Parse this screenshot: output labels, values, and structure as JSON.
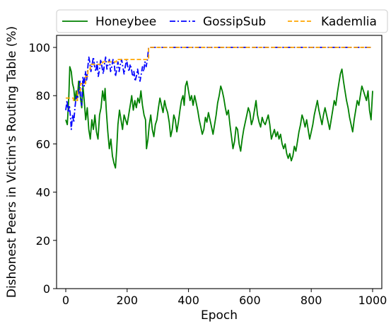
{
  "chart_data": {
    "type": "line",
    "xlabel": "Epoch",
    "ylabel": "Dishonest Peers in Victim's Routing Table (%)",
    "xlim": [
      -30,
      1030
    ],
    "ylim": [
      0,
      105
    ],
    "x_ticks": [
      0,
      200,
      400,
      600,
      800,
      1000
    ],
    "y_ticks": [
      0,
      20,
      40,
      60,
      80,
      100
    ],
    "grid": false,
    "legend_position": "top (above plot)",
    "series": [
      {
        "name": "Honeybee",
        "color": "#008000",
        "linestyle": "solid",
        "points": [
          [
            0,
            70
          ],
          [
            5,
            68
          ],
          [
            10,
            80
          ],
          [
            13,
            92
          ],
          [
            18,
            90
          ],
          [
            22,
            85
          ],
          [
            26,
            83
          ],
          [
            30,
            78
          ],
          [
            34,
            82
          ],
          [
            38,
            79
          ],
          [
            42,
            86
          ],
          [
            47,
            80
          ],
          [
            52,
            75
          ],
          [
            56,
            84
          ],
          [
            60,
            78
          ],
          [
            65,
            70
          ],
          [
            70,
            75
          ],
          [
            75,
            66
          ],
          [
            80,
            62
          ],
          [
            85,
            70
          ],
          [
            90,
            66
          ],
          [
            95,
            72
          ],
          [
            100,
            65
          ],
          [
            105,
            62
          ],
          [
            110,
            72
          ],
          [
            115,
            75
          ],
          [
            120,
            82
          ],
          [
            125,
            78
          ],
          [
            128,
            83
          ],
          [
            132,
            74
          ],
          [
            137,
            65
          ],
          [
            142,
            58
          ],
          [
            147,
            62
          ],
          [
            152,
            55
          ],
          [
            157,
            52
          ],
          [
            162,
            50
          ],
          [
            166,
            58
          ],
          [
            170,
            68
          ],
          [
            175,
            74
          ],
          [
            180,
            70
          ],
          [
            185,
            66
          ],
          [
            190,
            72
          ],
          [
            195,
            70
          ],
          [
            200,
            68
          ],
          [
            205,
            72
          ],
          [
            210,
            76
          ],
          [
            215,
            80
          ],
          [
            220,
            74
          ],
          [
            225,
            78
          ],
          [
            230,
            75
          ],
          [
            235,
            79
          ],
          [
            240,
            77
          ],
          [
            245,
            82
          ],
          [
            250,
            76
          ],
          [
            255,
            72
          ],
          [
            260,
            70
          ],
          [
            263,
            58
          ],
          [
            268,
            62
          ],
          [
            272,
            68
          ],
          [
            277,
            72
          ],
          [
            282,
            66
          ],
          [
            287,
            63
          ],
          [
            292,
            68
          ],
          [
            297,
            70
          ],
          [
            302,
            75
          ],
          [
            307,
            79
          ],
          [
            312,
            76
          ],
          [
            317,
            73
          ],
          [
            322,
            78
          ],
          [
            327,
            75
          ],
          [
            332,
            73
          ],
          [
            337,
            69
          ],
          [
            342,
            63
          ],
          [
            347,
            66
          ],
          [
            352,
            72
          ],
          [
            357,
            70
          ],
          [
            362,
            65
          ],
          [
            367,
            69
          ],
          [
            372,
            74
          ],
          [
            377,
            78
          ],
          [
            382,
            80
          ],
          [
            386,
            76
          ],
          [
            390,
            84
          ],
          [
            395,
            86
          ],
          [
            400,
            82
          ],
          [
            405,
            78
          ],
          [
            410,
            80
          ],
          [
            415,
            76
          ],
          [
            420,
            80
          ],
          [
            425,
            77
          ],
          [
            430,
            74
          ],
          [
            435,
            70
          ],
          [
            440,
            67
          ],
          [
            445,
            64
          ],
          [
            450,
            66
          ],
          [
            455,
            71
          ],
          [
            460,
            69
          ],
          [
            465,
            73
          ],
          [
            470,
            70
          ],
          [
            475,
            67
          ],
          [
            480,
            64
          ],
          [
            485,
            68
          ],
          [
            490,
            72
          ],
          [
            495,
            77
          ],
          [
            500,
            80
          ],
          [
            505,
            84
          ],
          [
            510,
            82
          ],
          [
            515,
            79
          ],
          [
            520,
            75
          ],
          [
            525,
            72
          ],
          [
            530,
            74
          ],
          [
            535,
            68
          ],
          [
            540,
            63
          ],
          [
            545,
            58
          ],
          [
            550,
            61
          ],
          [
            555,
            67
          ],
          [
            560,
            66
          ],
          [
            565,
            60
          ],
          [
            570,
            57
          ],
          [
            575,
            62
          ],
          [
            580,
            66
          ],
          [
            585,
            69
          ],
          [
            590,
            72
          ],
          [
            595,
            75
          ],
          [
            600,
            73
          ],
          [
            605,
            68
          ],
          [
            610,
            70
          ],
          [
            615,
            74
          ],
          [
            620,
            78
          ],
          [
            625,
            72
          ],
          [
            630,
            69
          ],
          [
            635,
            67
          ],
          [
            640,
            71
          ],
          [
            645,
            69
          ],
          [
            650,
            68
          ],
          [
            655,
            70
          ],
          [
            660,
            72
          ],
          [
            665,
            68
          ],
          [
            670,
            62
          ],
          [
            675,
            64
          ],
          [
            680,
            66
          ],
          [
            685,
            63
          ],
          [
            690,
            65
          ],
          [
            695,
            62
          ],
          [
            700,
            64
          ],
          [
            705,
            60
          ],
          [
            710,
            58
          ],
          [
            715,
            60
          ],
          [
            720,
            56
          ],
          [
            725,
            54
          ],
          [
            730,
            56
          ],
          [
            735,
            53
          ],
          [
            740,
            55
          ],
          [
            745,
            59
          ],
          [
            750,
            57
          ],
          [
            755,
            61
          ],
          [
            760,
            65
          ],
          [
            765,
            68
          ],
          [
            770,
            72
          ],
          [
            775,
            70
          ],
          [
            780,
            67
          ],
          [
            785,
            70
          ],
          [
            790,
            66
          ],
          [
            795,
            62
          ],
          [
            800,
            65
          ],
          [
            805,
            68
          ],
          [
            810,
            72
          ],
          [
            815,
            75
          ],
          [
            820,
            78
          ],
          [
            825,
            74
          ],
          [
            830,
            71
          ],
          [
            835,
            68
          ],
          [
            840,
            72
          ],
          [
            845,
            75
          ],
          [
            850,
            72
          ],
          [
            855,
            69
          ],
          [
            860,
            66
          ],
          [
            865,
            70
          ],
          [
            870,
            74
          ],
          [
            875,
            78
          ],
          [
            880,
            76
          ],
          [
            885,
            81
          ],
          [
            890,
            85
          ],
          [
            895,
            89
          ],
          [
            900,
            91
          ],
          [
            905,
            86
          ],
          [
            910,
            82
          ],
          [
            915,
            78
          ],
          [
            920,
            75
          ],
          [
            925,
            71
          ],
          [
            930,
            68
          ],
          [
            935,
            65
          ],
          [
            940,
            70
          ],
          [
            945,
            74
          ],
          [
            950,
            78
          ],
          [
            955,
            76
          ],
          [
            960,
            80
          ],
          [
            965,
            84
          ],
          [
            970,
            82
          ],
          [
            975,
            80
          ],
          [
            980,
            78
          ],
          [
            985,
            82
          ],
          [
            990,
            74
          ],
          [
            995,
            70
          ],
          [
            1000,
            82
          ]
        ]
      },
      {
        "name": "GossipSub",
        "color": "#0000ff",
        "linestyle": "dashdot",
        "points": [
          [
            0,
            74
          ],
          [
            4,
            78
          ],
          [
            8,
            73
          ],
          [
            12,
            76
          ],
          [
            16,
            70
          ],
          [
            18,
            66
          ],
          [
            22,
            72
          ],
          [
            26,
            69
          ],
          [
            30,
            75
          ],
          [
            34,
            80
          ],
          [
            38,
            78
          ],
          [
            42,
            82
          ],
          [
            46,
            86
          ],
          [
            48,
            80
          ],
          [
            52,
            76
          ],
          [
            56,
            88
          ],
          [
            60,
            84
          ],
          [
            64,
            90
          ],
          [
            68,
            86
          ],
          [
            72,
            92
          ],
          [
            75,
            96
          ],
          [
            78,
            94
          ],
          [
            82,
            90
          ],
          [
            86,
            93
          ],
          [
            90,
            96
          ],
          [
            94,
            92
          ],
          [
            98,
            90
          ],
          [
            102,
            94
          ],
          [
            106,
            88
          ],
          [
            110,
            91
          ],
          [
            114,
            95
          ],
          [
            118,
            92
          ],
          [
            122,
            89
          ],
          [
            126,
            93
          ],
          [
            130,
            96
          ],
          [
            134,
            91
          ],
          [
            138,
            93
          ],
          [
            142,
            95
          ],
          [
            146,
            90
          ],
          [
            150,
            92
          ],
          [
            154,
            95
          ],
          [
            158,
            93
          ],
          [
            162,
            88
          ],
          [
            166,
            91
          ],
          [
            170,
            94
          ],
          [
            174,
            90
          ],
          [
            178,
            93
          ],
          [
            182,
            95
          ],
          [
            186,
            92
          ],
          [
            190,
            89
          ],
          [
            194,
            92
          ],
          [
            198,
            95
          ],
          [
            202,
            92
          ],
          [
            206,
            90
          ],
          [
            210,
            93
          ],
          [
            214,
            91
          ],
          [
            218,
            88
          ],
          [
            222,
            90
          ],
          [
            226,
            86
          ],
          [
            230,
            88
          ],
          [
            234,
            91
          ],
          [
            238,
            88
          ],
          [
            242,
            86
          ],
          [
            246,
            89
          ],
          [
            250,
            92
          ],
          [
            254,
            90
          ],
          [
            258,
            94
          ],
          [
            262,
            92
          ],
          [
            266,
            95
          ],
          [
            270,
            100
          ],
          [
            1000,
            100
          ]
        ]
      },
      {
        "name": "Kademlia",
        "color": "#ffa500",
        "linestyle": "dashed",
        "points": [
          [
            0,
            79
          ],
          [
            25,
            79
          ],
          [
            25,
            78
          ],
          [
            38,
            78
          ],
          [
            38,
            82
          ],
          [
            48,
            82
          ],
          [
            48,
            85
          ],
          [
            65,
            85
          ],
          [
            65,
            88
          ],
          [
            72,
            88
          ],
          [
            72,
            91
          ],
          [
            80,
            91
          ],
          [
            80,
            93
          ],
          [
            120,
            93
          ],
          [
            120,
            94
          ],
          [
            165,
            94
          ],
          [
            165,
            95
          ],
          [
            270,
            95
          ],
          [
            270,
            100
          ],
          [
            1000,
            100
          ]
        ]
      }
    ]
  }
}
